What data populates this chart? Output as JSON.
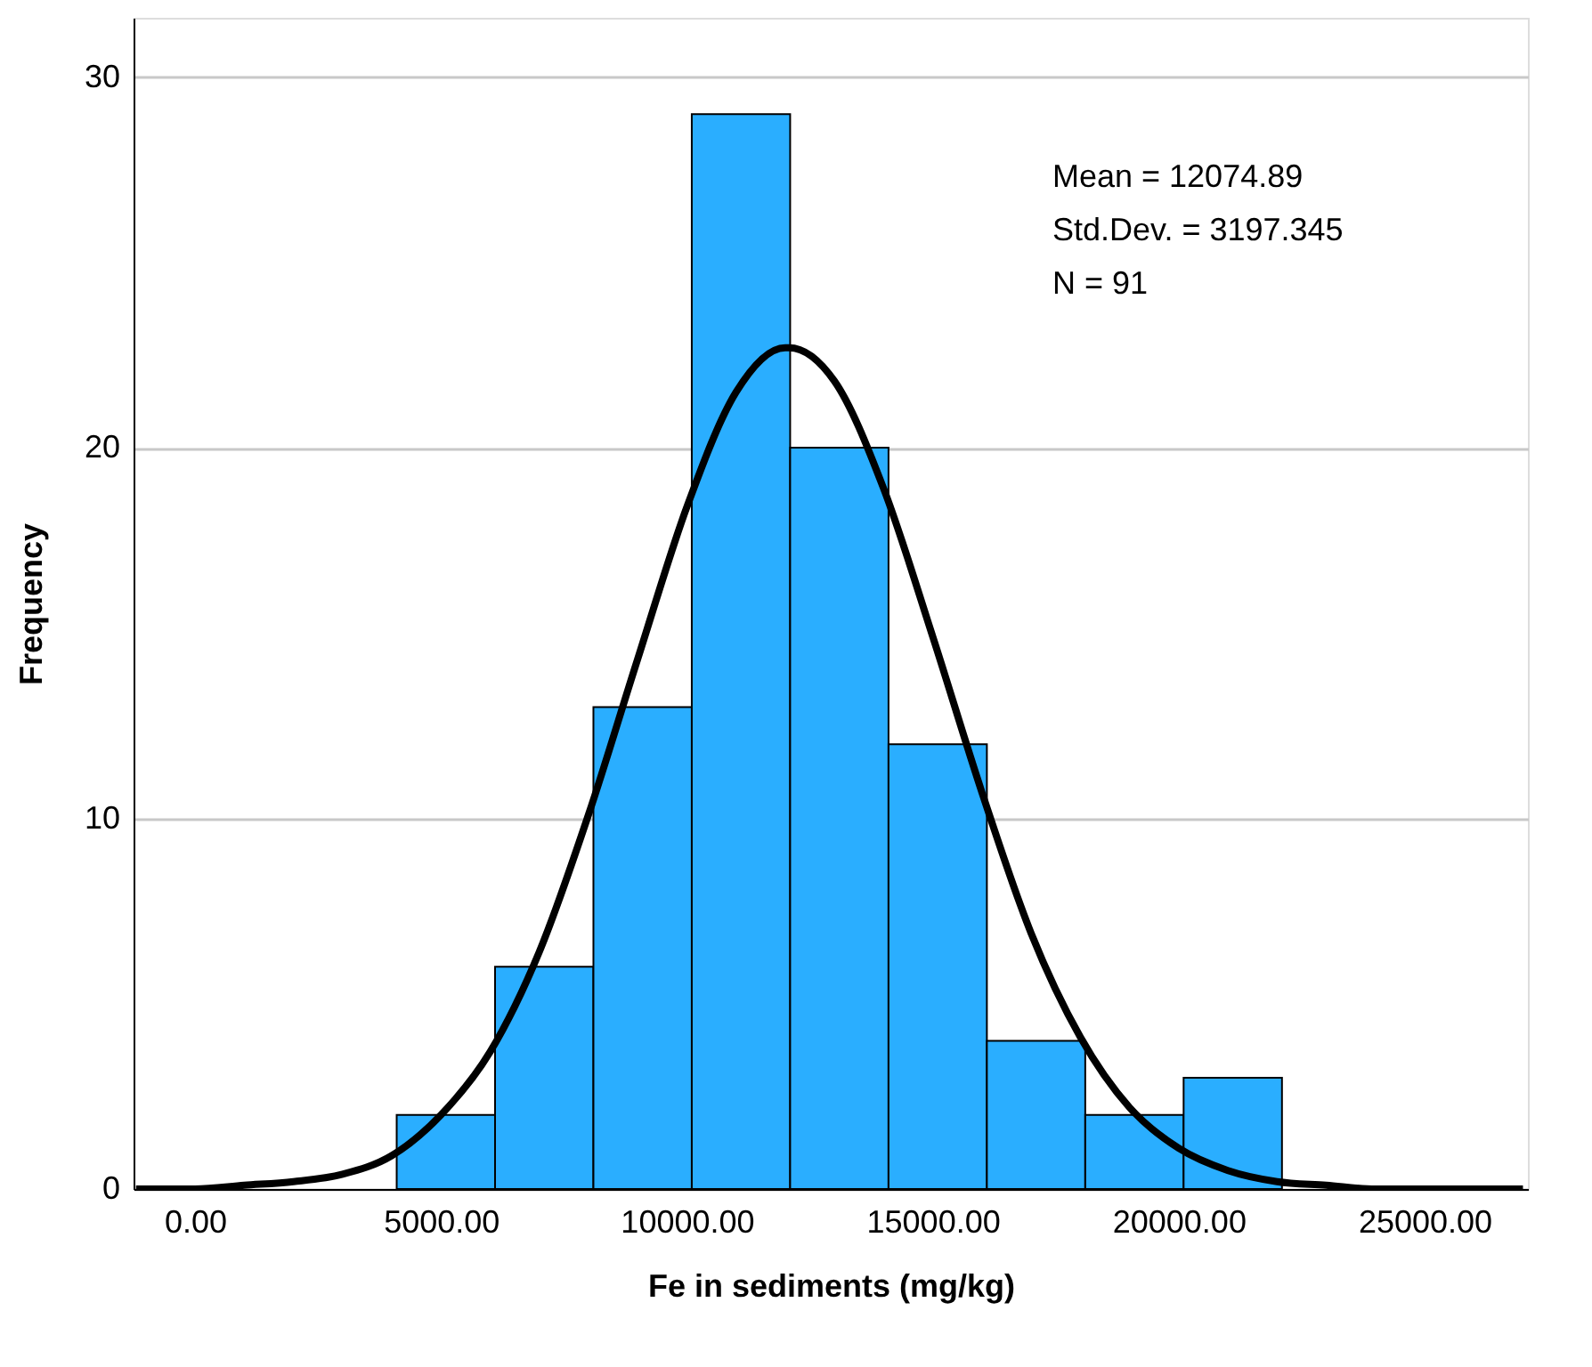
{
  "chart_data": {
    "type": "histogram",
    "xlabel": "Fe in sediments (mg/kg)",
    "ylabel": "Frequency",
    "bins": [
      4100,
      6100,
      8100,
      10100,
      12100,
      14100,
      16100,
      18100,
      20100,
      22100
    ],
    "values": [
      2,
      6,
      13,
      29,
      20,
      12,
      4,
      2,
      3
    ],
    "color": "#2aaeff",
    "series": [
      {
        "type": "line",
        "color": "#000000",
        "x": [
          -1200,
          0,
          1000,
          2000,
          3000,
          4000,
          5000,
          6000,
          7000,
          8000,
          9000,
          10000,
          11000,
          12000,
          12075,
          13000,
          14000,
          15000,
          16000,
          17000,
          18000,
          19000,
          20000,
          21000,
          22000,
          23000,
          24000,
          25000,
          26000,
          27000
        ],
        "values": [
          0.0,
          0.0,
          0.1,
          0.2,
          0.4,
          0.9,
          2.0,
          3.7,
          6.4,
          10.1,
          14.3,
          18.4,
          21.5,
          22.7,
          22.7,
          21.8,
          18.9,
          14.9,
          10.7,
          6.9,
          4.1,
          2.2,
          1.1,
          0.5,
          0.2,
          0.1,
          0.0,
          0.0,
          0.0,
          0.0
        ]
      }
    ],
    "xlim": [
      -1250,
      27100
    ],
    "ylim": [
      0,
      31.6
    ],
    "xticks": [
      {
        "value": 0,
        "label": "0.00"
      },
      {
        "value": 5000,
        "label": "5000.00"
      },
      {
        "value": 10000,
        "label": "10000.00"
      },
      {
        "value": 15000,
        "label": "15000.00"
      },
      {
        "value": 20000,
        "label": "20000.00"
      },
      {
        "value": 25000,
        "label": "25000.00"
      }
    ],
    "yticks": [
      0,
      10,
      20,
      30
    ],
    "grid": "y",
    "line_style": "solid",
    "marker": "none",
    "annotations": [
      "Mean = 12074.89",
      "Std.Dev. = 3197.345",
      "N = 91"
    ]
  }
}
